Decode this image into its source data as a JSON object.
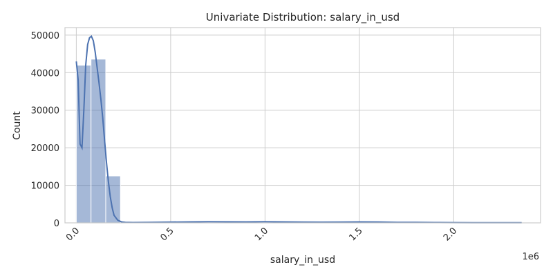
{
  "chart_data": {
    "type": "bar",
    "title": "Univariate Distribution: salary_in_usd",
    "xlabel": "salary_in_usd",
    "ylabel": "Count",
    "x_offset_label": "1e6",
    "xlim": [
      -0.06,
      2.46
    ],
    "ylim": [
      0,
      52000
    ],
    "x_ticks": [
      0.0,
      0.5,
      1.0,
      1.5,
      2.0
    ],
    "x_tick_labels": [
      "0.0",
      "0.5",
      "1.0",
      "1.5",
      "2.0"
    ],
    "y_ticks": [
      0,
      10000,
      20000,
      30000,
      40000,
      50000
    ],
    "y_tick_labels": [
      "0",
      "10000",
      "20000",
      "30000",
      "40000",
      "50000"
    ],
    "grid": true,
    "bin_width": 0.078,
    "bins": [
      {
        "x0": 0.0,
        "count": 42000
      },
      {
        "x0": 0.078,
        "count": 43600
      },
      {
        "x0": 0.156,
        "count": 12500
      },
      {
        "x0": 0.234,
        "count": 300
      },
      {
        "x0": 0.312,
        "count": 30
      },
      {
        "x0": 0.39,
        "count": 20
      },
      {
        "x0": 0.468,
        "count": 30
      },
      {
        "x0": 0.546,
        "count": 50
      },
      {
        "x0": 0.624,
        "count": 60
      },
      {
        "x0": 0.702,
        "count": 50
      },
      {
        "x0": 0.78,
        "count": 40
      },
      {
        "x0": 0.858,
        "count": 50
      },
      {
        "x0": 0.936,
        "count": 40
      },
      {
        "x0": 1.014,
        "count": 40
      },
      {
        "x0": 1.092,
        "count": 30
      },
      {
        "x0": 1.17,
        "count": 30
      },
      {
        "x0": 1.248,
        "count": 30
      },
      {
        "x0": 1.326,
        "count": 30
      },
      {
        "x0": 1.404,
        "count": 40
      },
      {
        "x0": 1.482,
        "count": 40
      },
      {
        "x0": 1.56,
        "count": 40
      },
      {
        "x0": 1.638,
        "count": 20
      },
      {
        "x0": 1.716,
        "count": 15
      },
      {
        "x0": 1.794,
        "count": 15
      },
      {
        "x0": 1.872,
        "count": 10
      },
      {
        "x0": 1.95,
        "count": 10
      },
      {
        "x0": 2.028,
        "count": 8
      },
      {
        "x0": 2.106,
        "count": 8
      },
      {
        "x0": 2.184,
        "count": 8
      },
      {
        "x0": 2.262,
        "count": 5
      }
    ],
    "kde": {
      "x": [
        0.0,
        0.01,
        0.02,
        0.03,
        0.04,
        0.05,
        0.06,
        0.07,
        0.08,
        0.09,
        0.1,
        0.11,
        0.12,
        0.13,
        0.14,
        0.15,
        0.16,
        0.17,
        0.18,
        0.19,
        0.2,
        0.22,
        0.24,
        0.26,
        0.3,
        0.4,
        0.5,
        0.6,
        0.7,
        0.8,
        0.9,
        1.0,
        1.1,
        1.2,
        1.3,
        1.4,
        1.5,
        1.6,
        1.7,
        1.8,
        1.9,
        2.0,
        2.1,
        2.2,
        2.36
      ],
      "y": [
        43000,
        38000,
        21000,
        20000,
        30000,
        42000,
        47500,
        49300,
        49700,
        48500,
        45500,
        41500,
        37500,
        33000,
        28000,
        22000,
        16000,
        11000,
        7000,
        4000,
        2000,
        700,
        250,
        120,
        100,
        150,
        200,
        250,
        300,
        280,
        260,
        300,
        250,
        200,
        180,
        200,
        250,
        230,
        150,
        120,
        100,
        80,
        60,
        50,
        40
      ]
    },
    "colors": {
      "bar_fill": "#4c72b0",
      "bar_opacity": 0.5,
      "bar_edge": "#ffffff",
      "kde_line": "#4c72b0",
      "grid": "#cccccc",
      "spine": "#cccccc"
    }
  }
}
